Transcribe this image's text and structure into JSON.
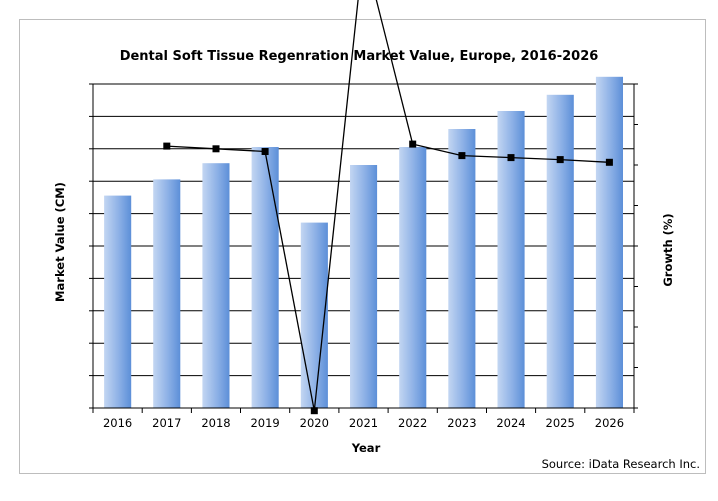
{
  "chart_data": {
    "type": "bar",
    "title": "Dental Soft Tissue Regenration Market Value, Europe, 2016-2026",
    "xlabel": "Year",
    "ylabel": "Market Value (CM)",
    "y2label": "Growth (%)",
    "categories": [
      "2016",
      "2017",
      "2018",
      "2019",
      "2020",
      "2021",
      "2022",
      "2023",
      "2024",
      "2025",
      "2026"
    ],
    "ylim": [
      0,
      9
    ],
    "y2lim": [
      -12,
      12
    ],
    "grid": true,
    "series": [
      {
        "kind": "bar",
        "axis": "left",
        "values": [
          5.9,
          6.35,
          6.8,
          7.25,
          5.15,
          6.75,
          7.25,
          7.75,
          8.25,
          8.7,
          9.2
        ]
      },
      {
        "kind": "line",
        "axis": "right",
        "values": [
          null,
          7.4,
          7.2,
          7.0,
          -12.2,
          22.0,
          7.55,
          6.7,
          6.55,
          6.4,
          6.2
        ]
      }
    ],
    "colors": {
      "bar_top": "#a8c4ec",
      "bar_bottom": "#4a80d0",
      "line": "#000000",
      "grid": "#000000"
    }
  },
  "source": "Source: iData Research Inc."
}
